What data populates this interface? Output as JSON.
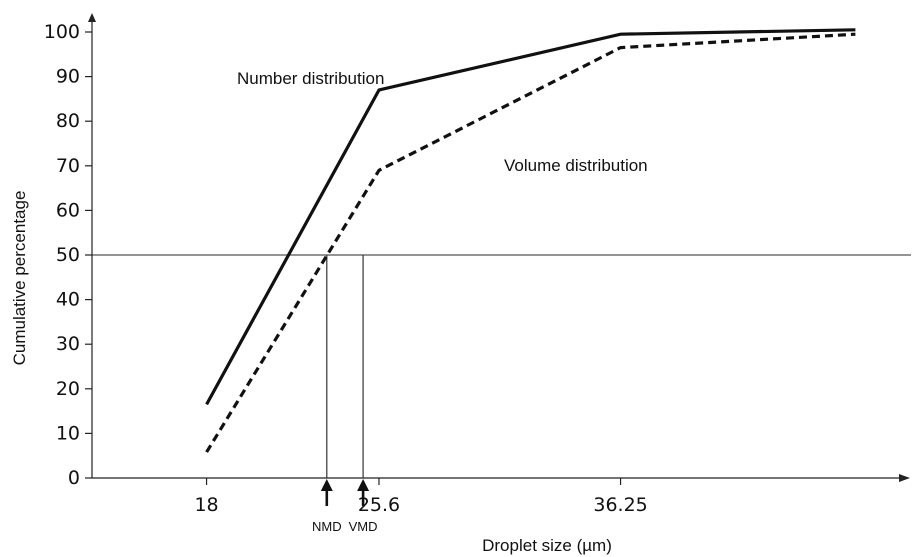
{
  "chart_data": {
    "type": "line",
    "xlabel": "Droplet size (µm)",
    "ylabel": "Cumulative percentage",
    "xlim": [
      12.95,
      48.7
    ],
    "ylim": [
      0,
      100
    ],
    "x_ticks": [
      18,
      25.6,
      36.25
    ],
    "y_ticks": [
      0,
      10,
      20,
      30,
      40,
      50,
      60,
      70,
      80,
      90,
      100
    ],
    "grid": false,
    "reference_line_y": 50,
    "series": [
      {
        "name": "Number distribution",
        "style": "solid",
        "x": [
          18,
          25.6,
          36.25,
          46.6
        ],
        "y": [
          16.5,
          87,
          99.5,
          100.5
        ]
      },
      {
        "name": "Volume distribution",
        "style": "dashed",
        "x": [
          18,
          25.6,
          36.25,
          46.6
        ],
        "y": [
          5.8,
          69,
          96.5,
          99.5
        ]
      }
    ],
    "markers": [
      {
        "label": "NMD",
        "x": 23.3,
        "y": 50
      },
      {
        "label": "VMD",
        "x": 24.9,
        "y": 50
      }
    ],
    "colors": {
      "lines": "#111111",
      "axes": "#222222"
    }
  }
}
